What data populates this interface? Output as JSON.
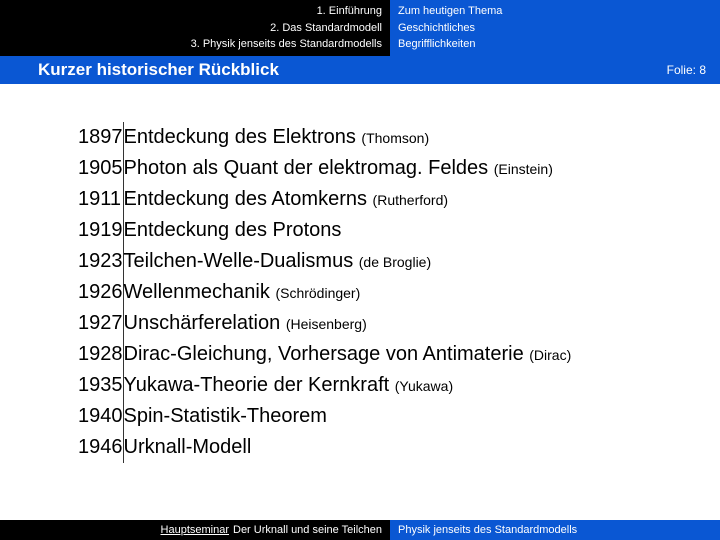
{
  "header": {
    "left": [
      "1. Einführung",
      "2. Das Standardmodell",
      "3. Physik jenseits des Standardmodells"
    ],
    "right": [
      "Zum heutigen Thema",
      "Geschichtliches",
      "Begrifflichkeiten"
    ]
  },
  "titlebar": {
    "title": "Kurzer historischer Rückblick",
    "folie_label": "Folie:",
    "folie_num": "8"
  },
  "timeline": [
    {
      "year": "1897",
      "event": "Entdeckung des Elektrons",
      "note": "(Thomson)"
    },
    {
      "year": "1905",
      "event": "Photon als Quant der elektromag. Feldes",
      "note": "(Einstein)"
    },
    {
      "year": "1911",
      "event": "Entdeckung des Atomkerns",
      "note": "(Rutherford)"
    },
    {
      "year": "1919",
      "event": "Entdeckung des Protons",
      "note": ""
    },
    {
      "year": "1923",
      "event": "Teilchen-Welle-Dualismus",
      "note": "(de Broglie)"
    },
    {
      "year": "1926",
      "event": "Wellenmechanik",
      "note": "(Schrödinger)"
    },
    {
      "year": "1927",
      "event": "Unschärferelation",
      "note": "(Heisenberg)"
    },
    {
      "year": "1928",
      "event": "Dirac-Gleichung, Vorhersage von Antimaterie",
      "note": "(Dirac)"
    },
    {
      "year": "1935",
      "event": "Yukawa-Theorie der Kernkraft",
      "note": "(Yukawa)"
    },
    {
      "year": "1940",
      "event": "Spin-Statistik-Theorem",
      "note": ""
    },
    {
      "year": "1946",
      "event": "Urknall-Modell",
      "note": ""
    }
  ],
  "footer": {
    "left_label": "Hauptseminar",
    "left_text": "Der Urknall und seine Teilchen",
    "right_text": "Physik jenseits des Standardmodells"
  }
}
